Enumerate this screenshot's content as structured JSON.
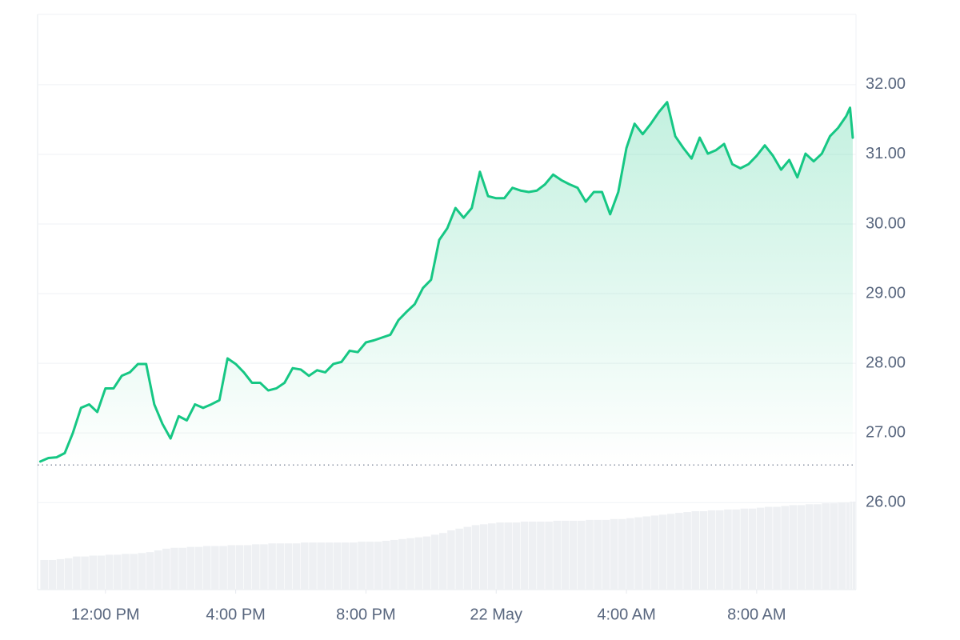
{
  "chart_data": {
    "type": "line",
    "x": [
      "21 May 10:00",
      "21 May 10:15",
      "21 May 10:30",
      "21 May 10:45",
      "21 May 11:00",
      "21 May 11:15",
      "21 May 11:30",
      "21 May 11:45",
      "21 May 12:00",
      "21 May 12:15",
      "21 May 12:30",
      "21 May 12:45",
      "21 May 13:00",
      "21 May 13:15",
      "21 May 13:30",
      "21 May 13:45",
      "21 May 14:00",
      "21 May 14:15",
      "21 May 14:30",
      "21 May 14:45",
      "21 May 15:00",
      "21 May 15:15",
      "21 May 15:30",
      "21 May 15:45",
      "21 May 16:00",
      "21 May 16:15",
      "21 May 16:30",
      "21 May 16:45",
      "21 May 17:00",
      "21 May 17:15",
      "21 May 17:30",
      "21 May 17:45",
      "21 May 18:00",
      "21 May 18:15",
      "21 May 18:30",
      "21 May 18:45",
      "21 May 19:00",
      "21 May 19:15",
      "21 May 19:30",
      "21 May 19:45",
      "21 May 20:00",
      "21 May 20:15",
      "21 May 20:30",
      "21 May 20:45",
      "21 May 21:00",
      "21 May 21:15",
      "21 May 21:30",
      "21 May 21:45",
      "21 May 22:00",
      "21 May 22:15",
      "21 May 22:30",
      "21 May 22:45",
      "21 May 23:00",
      "21 May 23:15",
      "21 May 23:30",
      "21 May 23:45",
      "22 May 00:00",
      "22 May 00:15",
      "22 May 00:30",
      "22 May 00:45",
      "22 May 01:00",
      "22 May 01:15",
      "22 May 01:30",
      "22 May 01:45",
      "22 May 02:00",
      "22 May 02:15",
      "22 May 02:30",
      "22 May 02:45",
      "22 May 03:00",
      "22 May 03:15",
      "22 May 03:30",
      "22 May 03:45",
      "22 May 04:00",
      "22 May 04:15",
      "22 May 04:30",
      "22 May 04:45",
      "22 May 05:00",
      "22 May 05:15",
      "22 May 05:30",
      "22 May 05:45",
      "22 May 06:00",
      "22 May 06:15",
      "22 May 06:30",
      "22 May 06:45",
      "22 May 07:00",
      "22 May 07:15",
      "22 May 07:30",
      "22 May 07:45",
      "22 May 08:00",
      "22 May 08:15",
      "22 May 08:30",
      "22 May 08:45",
      "22 May 09:00",
      "22 May 09:15",
      "22 May 09:30",
      "22 May 09:45",
      "22 May 10:00",
      "22 May 10:15",
      "22 May 10:30",
      "22 May 10:45",
      "22 May 10:52",
      "22 May 10:57"
    ],
    "series": [
      {
        "color": "#16c784",
        "values": [
          26.59,
          26.64,
          26.65,
          26.71,
          27.0,
          27.36,
          27.41,
          27.3,
          27.64,
          27.64,
          27.82,
          27.87,
          27.99,
          27.99,
          27.41,
          27.13,
          26.92,
          27.24,
          27.18,
          27.41,
          27.36,
          27.41,
          27.47,
          28.07,
          27.99,
          27.87,
          27.72,
          27.72,
          27.61,
          27.64,
          27.72,
          27.93,
          27.91,
          27.82,
          27.9,
          27.87,
          27.99,
          28.02,
          28.18,
          28.16,
          28.3,
          28.33,
          28.37,
          28.41,
          28.62,
          28.74,
          28.85,
          29.08,
          29.2,
          29.77,
          29.94,
          30.23,
          30.09,
          30.23,
          30.75,
          30.4,
          30.37,
          30.37,
          30.52,
          30.48,
          30.46,
          30.48,
          30.57,
          30.71,
          30.63,
          30.57,
          30.52,
          30.32,
          30.46,
          30.46,
          30.14,
          30.46,
          31.09,
          31.44,
          31.29,
          31.44,
          31.61,
          31.75,
          31.26,
          31.09,
          30.94,
          31.24,
          31.01,
          31.06,
          31.15,
          30.86,
          30.8,
          30.86,
          30.98,
          31.13,
          30.98,
          30.78,
          30.92,
          30.67,
          31.01,
          30.9,
          31.01,
          31.26,
          31.38,
          31.55,
          31.67,
          31.24
        ]
      }
    ],
    "volume": {
      "color": "#eef0f3",
      "values": [
        34,
        34,
        35,
        36,
        38,
        38,
        39,
        39,
        40,
        40,
        41,
        41,
        42,
        43,
        45,
        47,
        48,
        48,
        49,
        49,
        50,
        50,
        50,
        51,
        51,
        51,
        52,
        52,
        53,
        53,
        53,
        53,
        54,
        54,
        54,
        54,
        54,
        54,
        54,
        55,
        55,
        55,
        56,
        57,
        58,
        59,
        60,
        61,
        63,
        65,
        68,
        70,
        72,
        74,
        75,
        76,
        77,
        77,
        77,
        78,
        78,
        78,
        78,
        79,
        79,
        79,
        79,
        80,
        80,
        80,
        81,
        81,
        82,
        83,
        84,
        85,
        86,
        87,
        88,
        89,
        90,
        90,
        91,
        91,
        92,
        92,
        93,
        93,
        94,
        95,
        95,
        96,
        97,
        97,
        98,
        98,
        99,
        99,
        100,
        100,
        101,
        101
      ]
    },
    "baseline": 26.54,
    "xlim": [
      "21 May 09:55",
      "22 May 11:03"
    ],
    "xticks": [
      {
        "value": "21 May 12:00",
        "label": "12:00 PM"
      },
      {
        "value": "21 May 16:00",
        "label": "4:00 PM"
      },
      {
        "value": "21 May 20:00",
        "label": "8:00 PM"
      },
      {
        "value": "22 May 00:00",
        "label": "22 May"
      },
      {
        "value": "22 May 04:00",
        "label": "4:00 AM"
      },
      {
        "value": "22 May 08:00",
        "label": "8:00 AM"
      }
    ],
    "ylim": [
      24.75,
      33.01
    ],
    "yticks": [
      {
        "value": 26,
        "label": "26.00"
      },
      {
        "value": 27,
        "label": "27.00"
      },
      {
        "value": 28,
        "label": "28.00"
      },
      {
        "value": 29,
        "label": "29.00"
      },
      {
        "value": 30,
        "label": "30.00"
      },
      {
        "value": 31,
        "label": "31.00"
      },
      {
        "value": 32,
        "label": "32.00"
      }
    ],
    "grid": true
  }
}
